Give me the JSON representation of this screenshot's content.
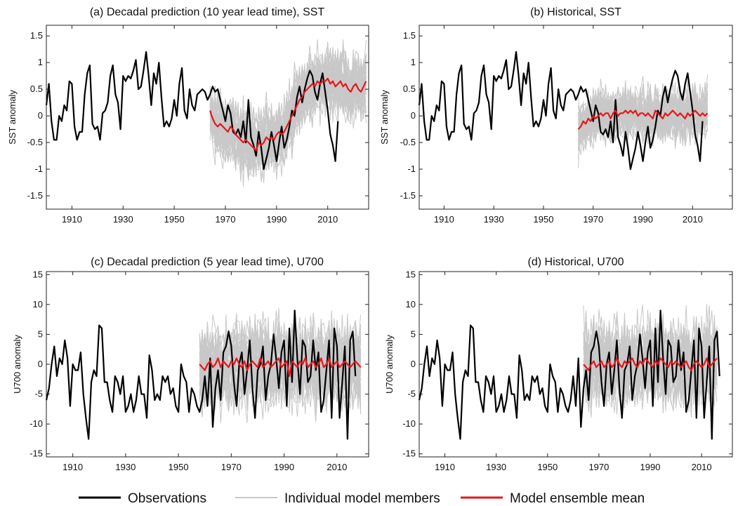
{
  "colors": {
    "observations": "#000000",
    "members": "#c8c8c8",
    "ensemble_mean": "#e8161a",
    "axes": "#222222"
  },
  "legend": [
    {
      "label": "Observations",
      "color": "#000000"
    },
    {
      "label": "Individual model members",
      "color": "#c8c8c8"
    },
    {
      "label": "Model ensemble mean",
      "color": "#e8161a"
    }
  ],
  "chart_data": [
    {
      "type": "line",
      "title": "(a) Decadal prediction (10 year lead time), SST",
      "ylabel": "SST anomaly",
      "xlim": [
        1900,
        2026
      ],
      "ylim": [
        -1.75,
        1.7
      ],
      "xticks": [
        1910,
        1930,
        1950,
        1970,
        1990,
        2010
      ],
      "yticks": [
        -1.5,
        -1,
        -0.5,
        0,
        0.5,
        1,
        1.5
      ],
      "ytick_labels": [
        "-1.5",
        "-1",
        "-0.5",
        "0",
        "0.5",
        "1",
        "1.5"
      ],
      "grid": false,
      "series": [
        {
          "role": "observations",
          "x_start": 1900,
          "values": [
            0.2,
            0.6,
            -0.1,
            -0.45,
            -0.45,
            0.0,
            -0.1,
            0.2,
            0.1,
            0.65,
            0.6,
            -0.2,
            -0.45,
            -0.3,
            -0.3,
            0.4,
            0.8,
            0.95,
            -0.15,
            -0.25,
            -0.2,
            -0.45,
            0.05,
            0.1,
            0.25,
            0.75,
            0.95,
            0.4,
            0.25,
            -0.25,
            0.75,
            0.65,
            0.75,
            0.7,
            0.85,
            1.05,
            0.5,
            0.55,
            0.85,
            1.2,
            0.75,
            0.2,
            0.8,
            0.6,
            1.0,
            0.35,
            -0.2,
            -0.1,
            -0.2,
            -0.05,
            0.3,
            0.0,
            0.6,
            0.9,
            0.1,
            -0.05,
            0.5,
            0.2,
            0.1,
            0.4,
            0.45,
            0.5,
            0.45,
            0.3,
            0.4,
            0.55,
            0.45,
            0.5,
            0.3,
            0.1,
            -0.1,
            0.2,
            0.05,
            -0.3,
            -0.35,
            -0.25,
            -0.4,
            -0.1,
            -0.5,
            0.3,
            -0.4,
            -0.55,
            -0.75,
            -0.3,
            -0.6,
            -1.0,
            -0.8,
            -0.6,
            -0.3,
            -0.55,
            -0.85,
            -0.5,
            -0.2,
            -0.6,
            -0.45,
            -0.2,
            0.1,
            0.0,
            0.35,
            0.55,
            0.25,
            0.5,
            0.7,
            0.85,
            0.75,
            0.45,
            0.3,
            0.6,
            0.8,
            0.45,
            0.1,
            -0.35,
            -0.55,
            -0.85,
            -0.1
          ]
        },
        {
          "role": "ensemble_mean",
          "x_start": 1964,
          "values": [
            0.1,
            -0.05,
            -0.15,
            -0.2,
            -0.15,
            -0.2,
            -0.25,
            -0.3,
            -0.2,
            -0.25,
            -0.35,
            -0.4,
            -0.45,
            -0.5,
            -0.45,
            -0.5,
            -0.55,
            -0.6,
            -0.65,
            -0.5,
            -0.55,
            -0.5,
            -0.4,
            -0.45,
            -0.4,
            -0.45,
            -0.35,
            -0.3,
            -0.35,
            -0.3,
            -0.2,
            -0.1,
            0.0,
            0.1,
            0.2,
            0.3,
            0.35,
            0.45,
            0.5,
            0.55,
            0.6,
            0.55,
            0.65,
            0.6,
            0.65,
            0.65,
            0.7,
            0.6,
            0.65,
            0.55,
            0.6,
            0.65,
            0.55,
            0.6,
            0.5,
            0.45,
            0.55,
            0.6,
            0.5,
            0.45,
            0.55,
            0.65
          ]
        },
        {
          "role": "members",
          "x_start": 1964,
          "count": 40,
          "spread": 0.45,
          "range": [
            -1.45,
            1.65
          ]
        }
      ]
    },
    {
      "type": "line",
      "title": "(b) Historical, SST",
      "ylabel": "SST anomaly",
      "xlim": [
        1900,
        2026
      ],
      "ylim": [
        -1.75,
        1.7
      ],
      "xticks": [
        1910,
        1930,
        1950,
        1970,
        1990,
        2010
      ],
      "yticks": [
        -1.5,
        -1,
        -0.5,
        0,
        0.5,
        1,
        1.5
      ],
      "ytick_labels": [
        "-1.5",
        "-1",
        "-0.5",
        "0",
        "0.5",
        "1",
        "1.5"
      ],
      "grid": false,
      "series": [
        {
          "role": "observations",
          "x_start": 1900,
          "values": [
            0.2,
            0.6,
            -0.1,
            -0.45,
            -0.45,
            0.0,
            -0.1,
            0.2,
            0.1,
            0.65,
            0.6,
            -0.2,
            -0.45,
            -0.3,
            -0.3,
            0.4,
            0.8,
            0.95,
            -0.15,
            -0.25,
            -0.2,
            -0.45,
            0.05,
            0.1,
            0.25,
            0.75,
            0.95,
            0.4,
            0.25,
            -0.25,
            0.75,
            0.65,
            0.75,
            0.7,
            0.85,
            1.05,
            0.5,
            0.55,
            0.85,
            1.2,
            0.75,
            0.2,
            0.8,
            0.6,
            1.0,
            0.35,
            -0.2,
            -0.1,
            -0.2,
            -0.05,
            0.3,
            0.0,
            0.6,
            0.9,
            0.1,
            -0.05,
            0.5,
            0.2,
            0.1,
            0.4,
            0.45,
            0.5,
            0.45,
            0.3,
            0.4,
            0.55,
            0.45,
            0.5,
            0.3,
            0.1,
            -0.1,
            0.2,
            0.05,
            -0.3,
            -0.35,
            -0.25,
            -0.4,
            -0.1,
            -0.5,
            0.3,
            -0.4,
            -0.55,
            -0.75,
            -0.3,
            -0.6,
            -1.0,
            -0.8,
            -0.6,
            -0.3,
            -0.55,
            -0.85,
            -0.5,
            -0.2,
            -0.6,
            -0.45,
            -0.2,
            0.1,
            0.0,
            0.35,
            0.55,
            0.25,
            0.5,
            0.7,
            0.85,
            0.75,
            0.45,
            0.3,
            0.6,
            0.8,
            0.45,
            0.1,
            -0.35,
            -0.55,
            -0.85,
            -0.1
          ]
        },
        {
          "role": "ensemble_mean",
          "x_start": 1964,
          "values": [
            -0.25,
            -0.2,
            -0.1,
            -0.15,
            -0.05,
            -0.1,
            0.0,
            -0.05,
            0.0,
            0.05,
            0.0,
            0.05,
            0.05,
            -0.05,
            0.05,
            0.1,
            0.0,
            0.05,
            0.05,
            0.1,
            0.05,
            0.1,
            0.05,
            0.1,
            0.0,
            0.05,
            0.05,
            0.0,
            0.05,
            0.0,
            -0.05,
            0.1,
            0.05,
            0.0,
            -0.05,
            0.05,
            0.0,
            0.05,
            0.1,
            0.05,
            0.0,
            0.05,
            0.0,
            -0.05,
            0.05,
            0.0,
            0.05,
            0.1,
            0.05,
            0.0,
            0.05,
            0.0,
            0.05
          ]
        },
        {
          "role": "members",
          "x_start": 1964,
          "count": 40,
          "spread": 0.35,
          "range": [
            -1.0,
            1.2
          ]
        }
      ]
    },
    {
      "type": "line",
      "title": "(c) Decadal prediction (5 year lead time), U700",
      "ylabel": "U700 anomaly",
      "xlim": [
        1900,
        2022
      ],
      "ylim": [
        -15.5,
        15.5
      ],
      "xticks": [
        1910,
        1930,
        1950,
        1970,
        1990,
        2010
      ],
      "yticks": [
        -15,
        -10,
        -5,
        0,
        5,
        10,
        15
      ],
      "ytick_labels": [
        "-15",
        "-10",
        "-5",
        "0",
        "5",
        "10",
        "15"
      ],
      "grid": false,
      "series": [
        {
          "role": "observations",
          "x_start": 1900,
          "values": [
            -6,
            -4,
            0,
            3,
            -2,
            1,
            0,
            4,
            1,
            -7,
            0,
            -1,
            -1,
            2,
            -5,
            -9,
            -12.5,
            -3,
            -1,
            -2,
            6.5,
            6,
            -3,
            -3,
            -6,
            -8,
            -2,
            -3,
            -5,
            -2,
            -8,
            -7,
            -5,
            -8,
            -6,
            -2,
            -5,
            -5,
            -9,
            1.5,
            -1,
            -6,
            -5,
            -6,
            -2,
            -3,
            -2,
            -5,
            -4,
            -7,
            -8,
            0,
            -2,
            -3,
            -8,
            -4,
            -5,
            -7,
            -8,
            -6,
            -2,
            -7,
            1,
            -10.5,
            -4,
            -1,
            -6,
            2,
            3,
            5.5,
            3,
            -3,
            -7,
            0,
            2,
            -5,
            -1,
            4,
            -4,
            -9,
            -1,
            0,
            3,
            -6,
            -2,
            0,
            5,
            1,
            -4,
            2,
            4,
            -7,
            6,
            -3,
            9,
            1,
            -5,
            4,
            3,
            -3,
            -2,
            4,
            -1,
            2,
            -8,
            -6,
            -1,
            4,
            -9,
            6,
            3,
            -9,
            -3,
            3,
            -12.5,
            4,
            5.5,
            -2
          ]
        },
        {
          "role": "ensemble_mean",
          "x_start": 1958,
          "values": [
            0,
            -0.5,
            -1,
            0,
            0.5,
            -0.5,
            0,
            1,
            -0.5,
            0.5,
            0,
            -0.5,
            0.5,
            0,
            1,
            0,
            -0.5,
            0.5,
            -1,
            0,
            0.5,
            0,
            -0.5,
            1,
            -0.5,
            0,
            0.5,
            -0.5,
            0,
            0.5,
            1,
            -0.5,
            0,
            0.5,
            -2,
            0.5,
            0,
            -0.5,
            0.5,
            0,
            1,
            -0.5,
            0,
            0.5,
            -0.5,
            0,
            1,
            -0.5,
            0,
            1,
            -0.5,
            0,
            0.5,
            -0.5,
            0,
            0.5,
            0,
            -0.5,
            0,
            0.5,
            0,
            -0.5
          ]
        },
        {
          "role": "members",
          "x_start": 1958,
          "count": 40,
          "spread": 5.0,
          "range": [
            -14.5,
            11.5
          ]
        }
      ]
    },
    {
      "type": "line",
      "title": "(d) Historical, U700",
      "ylabel": "U700 anomaly",
      "xlim": [
        1900,
        2022
      ],
      "ylim": [
        -15.5,
        15.5
      ],
      "xticks": [
        1910,
        1930,
        1950,
        1970,
        1990,
        2010
      ],
      "yticks": [
        -15,
        -10,
        -5,
        0,
        5,
        10,
        15
      ],
      "ytick_labels": [
        "-15",
        "-10",
        "-5",
        "0",
        "5",
        "10",
        "15"
      ],
      "grid": false,
      "series": [
        {
          "role": "observations",
          "x_start": 1900,
          "values": [
            -6,
            -4,
            0,
            3,
            -2,
            1,
            0,
            4,
            1,
            -7,
            0,
            -1,
            -1,
            2,
            -5,
            -9,
            -12.5,
            -3,
            -1,
            -2,
            6.5,
            6,
            -3,
            -3,
            -6,
            -8,
            -2,
            -3,
            -5,
            -2,
            -8,
            -7,
            -5,
            -8,
            -6,
            -2,
            -5,
            -5,
            -9,
            1.5,
            -1,
            -6,
            -5,
            -6,
            -2,
            -3,
            -2,
            -5,
            -4,
            -7,
            -8,
            0,
            -2,
            -3,
            -8,
            -4,
            -5,
            -7,
            -8,
            -6,
            -2,
            -7,
            1,
            -10.5,
            -4,
            -1,
            -6,
            2,
            3,
            5.5,
            3,
            -3,
            -7,
            0,
            2,
            -5,
            -1,
            4,
            -4,
            -9,
            -1,
            0,
            3,
            -6,
            -2,
            0,
            5,
            1,
            -4,
            2,
            4,
            -7,
            6,
            -3,
            9,
            1,
            -5,
            4,
            3,
            -3,
            -2,
            4,
            -1,
            2,
            -8,
            -6,
            -1,
            4,
            -9,
            6,
            3,
            -9,
            -3,
            3,
            -12.5,
            4,
            5.5,
            -2
          ]
        },
        {
          "role": "ensemble_mean",
          "x_start": 1964,
          "values": [
            0,
            -0.5,
            -1,
            0,
            0.5,
            -0.5,
            0,
            0.5,
            -0.5,
            0,
            0.5,
            -0.5,
            0,
            1,
            0,
            -0.5,
            0.5,
            0,
            0.5,
            1,
            0,
            -0.5,
            0.5,
            0,
            1,
            0.5,
            0,
            -0.5,
            0.5,
            0,
            1,
            0.5,
            0,
            -0.5,
            0.5,
            0,
            0.5,
            0,
            -0.5,
            0,
            0.5,
            -0.5,
            -1,
            0,
            0.5,
            0,
            -0.5,
            0,
            1,
            -0.5,
            0,
            0.5,
            1
          ]
        },
        {
          "role": "members",
          "x_start": 1964,
          "count": 40,
          "spread": 5.0,
          "range": [
            -14.5,
            12.0
          ]
        }
      ]
    }
  ]
}
